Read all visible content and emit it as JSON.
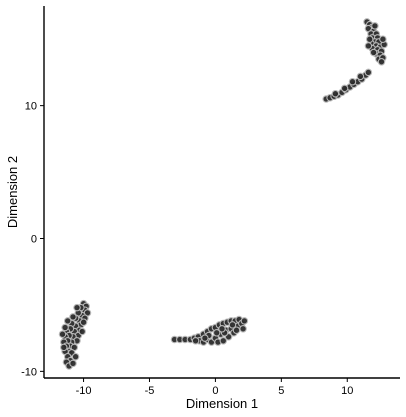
{
  "chart_data": {
    "type": "scatter",
    "title": "",
    "xlabel": "Dimension 1",
    "ylabel": "Dimension 2",
    "xlim": [
      -13,
      14
    ],
    "ylim": [
      -10.5,
      17.5
    ],
    "x_ticks": [
      -10,
      -5,
      0,
      5,
      10
    ],
    "y_ticks": [
      -10,
      0,
      10
    ],
    "grid": false,
    "legend": "none",
    "point_fill": "#2b2b2b",
    "point_outline": "#b8b8b8",
    "clusters": [
      {
        "points": [
          [
            -10.0,
            -4.9
          ],
          [
            -9.8,
            -5.1
          ],
          [
            -9.9,
            -5.4
          ],
          [
            -10.2,
            -5.2
          ],
          [
            -9.7,
            -5.6
          ],
          [
            -10.1,
            -5.8
          ],
          [
            -10.4,
            -5.6
          ],
          [
            -9.9,
            -6.0
          ],
          [
            -10.3,
            -6.2
          ],
          [
            -10.6,
            -6.0
          ],
          [
            -10.2,
            -6.5
          ],
          [
            -10.6,
            -6.6
          ],
          [
            -10.9,
            -6.4
          ],
          [
            -10.3,
            -6.9
          ],
          [
            -10.7,
            -7.0
          ],
          [
            -11.0,
            -6.8
          ],
          [
            -11.3,
            -7.0
          ],
          [
            -10.4,
            -7.3
          ],
          [
            -10.8,
            -7.4
          ],
          [
            -11.1,
            -7.3
          ],
          [
            -11.4,
            -7.4
          ],
          [
            -10.5,
            -7.7
          ],
          [
            -10.9,
            -7.8
          ],
          [
            -11.2,
            -7.7
          ],
          [
            -11.5,
            -7.8
          ],
          [
            -11.0,
            -8.1
          ],
          [
            -11.3,
            -8.1
          ],
          [
            -10.7,
            -8.2
          ],
          [
            -11.1,
            -8.5
          ],
          [
            -11.4,
            -8.5
          ],
          [
            -10.9,
            -8.6
          ],
          [
            -11.2,
            -8.9
          ],
          [
            -11.0,
            -9.2
          ],
          [
            -11.3,
            -9.3
          ],
          [
            -11.1,
            -9.6
          ],
          [
            -10.5,
            -5.2
          ],
          [
            -10.8,
            -5.9
          ],
          [
            -11.2,
            -6.2
          ],
          [
            -11.4,
            -6.7
          ],
          [
            -11.6,
            -7.2
          ],
          [
            -10.6,
            -8.9
          ],
          [
            -10.8,
            -9.4
          ],
          [
            -11.5,
            -8.2
          ],
          [
            -10.0,
            -6.3
          ],
          [
            -10.1,
            -7.0
          ]
        ]
      },
      {
        "points": [
          [
            -3.1,
            -7.6
          ],
          [
            -2.7,
            -7.6
          ],
          [
            -2.3,
            -7.6
          ],
          [
            -1.9,
            -7.6
          ],
          [
            -1.6,
            -7.5
          ],
          [
            -1.3,
            -7.4
          ],
          [
            -1.2,
            -7.7
          ],
          [
            -0.9,
            -7.2
          ],
          [
            -0.9,
            -7.8
          ],
          [
            -0.6,
            -7.0
          ],
          [
            -0.6,
            -7.6
          ],
          [
            -0.3,
            -6.8
          ],
          [
            -0.3,
            -7.8
          ],
          [
            0.0,
            -6.7
          ],
          [
            0.0,
            -7.5
          ],
          [
            0.2,
            -7.8
          ],
          [
            0.3,
            -6.5
          ],
          [
            0.4,
            -7.2
          ],
          [
            0.6,
            -6.4
          ],
          [
            0.6,
            -7.7
          ],
          [
            0.8,
            -6.9
          ],
          [
            0.9,
            -6.3
          ],
          [
            1.0,
            -7.4
          ],
          [
            1.2,
            -6.2
          ],
          [
            1.2,
            -6.8
          ],
          [
            1.4,
            -7.1
          ],
          [
            1.5,
            -6.2
          ],
          [
            1.7,
            -6.6
          ],
          [
            1.8,
            -6.1
          ],
          [
            2.0,
            -6.4
          ],
          [
            2.1,
            -6.8
          ],
          [
            2.2,
            -6.2
          ],
          [
            -0.5,
            -7.3
          ],
          [
            0.1,
            -7.1
          ],
          [
            0.7,
            -7.1
          ],
          [
            1.3,
            -6.5
          ],
          [
            -1.5,
            -7.7
          ],
          [
            -0.8,
            -7.5
          ],
          [
            0.5,
            -6.8
          ],
          [
            1.6,
            -6.9
          ]
        ]
      },
      {
        "points": [
          [
            8.4,
            10.5
          ],
          [
            8.7,
            10.6
          ],
          [
            9.0,
            10.7
          ],
          [
            9.3,
            10.8
          ],
          [
            9.6,
            11.0
          ],
          [
            9.9,
            11.2
          ],
          [
            10.2,
            11.4
          ],
          [
            10.5,
            11.6
          ],
          [
            10.8,
            11.8
          ],
          [
            11.1,
            12.0
          ],
          [
            11.4,
            12.3
          ],
          [
            11.6,
            12.5
          ],
          [
            9.1,
            10.9
          ],
          [
            9.8,
            11.3
          ],
          [
            10.4,
            11.8
          ],
          [
            11.0,
            12.2
          ],
          [
            11.5,
            16.3
          ],
          [
            11.7,
            16.1
          ],
          [
            11.9,
            15.9
          ],
          [
            11.6,
            15.8
          ],
          [
            12.0,
            15.6
          ],
          [
            11.8,
            15.4
          ],
          [
            12.2,
            15.4
          ],
          [
            11.9,
            15.1
          ],
          [
            12.3,
            15.1
          ],
          [
            12.1,
            14.8
          ],
          [
            11.8,
            14.7
          ],
          [
            12.4,
            14.8
          ],
          [
            12.2,
            14.5
          ],
          [
            12.5,
            14.4
          ],
          [
            11.9,
            14.3
          ],
          [
            12.3,
            14.2
          ],
          [
            12.6,
            14.1
          ],
          [
            12.2,
            13.9
          ],
          [
            12.5,
            13.8
          ],
          [
            12.4,
            13.5
          ],
          [
            12.7,
            13.6
          ],
          [
            12.6,
            13.3
          ],
          [
            11.7,
            15.0
          ],
          [
            12.0,
            14.0
          ],
          [
            12.8,
            14.6
          ],
          [
            12.1,
            16.0
          ],
          [
            11.6,
            14.5
          ],
          [
            12.7,
            15.0
          ]
        ]
      }
    ]
  }
}
